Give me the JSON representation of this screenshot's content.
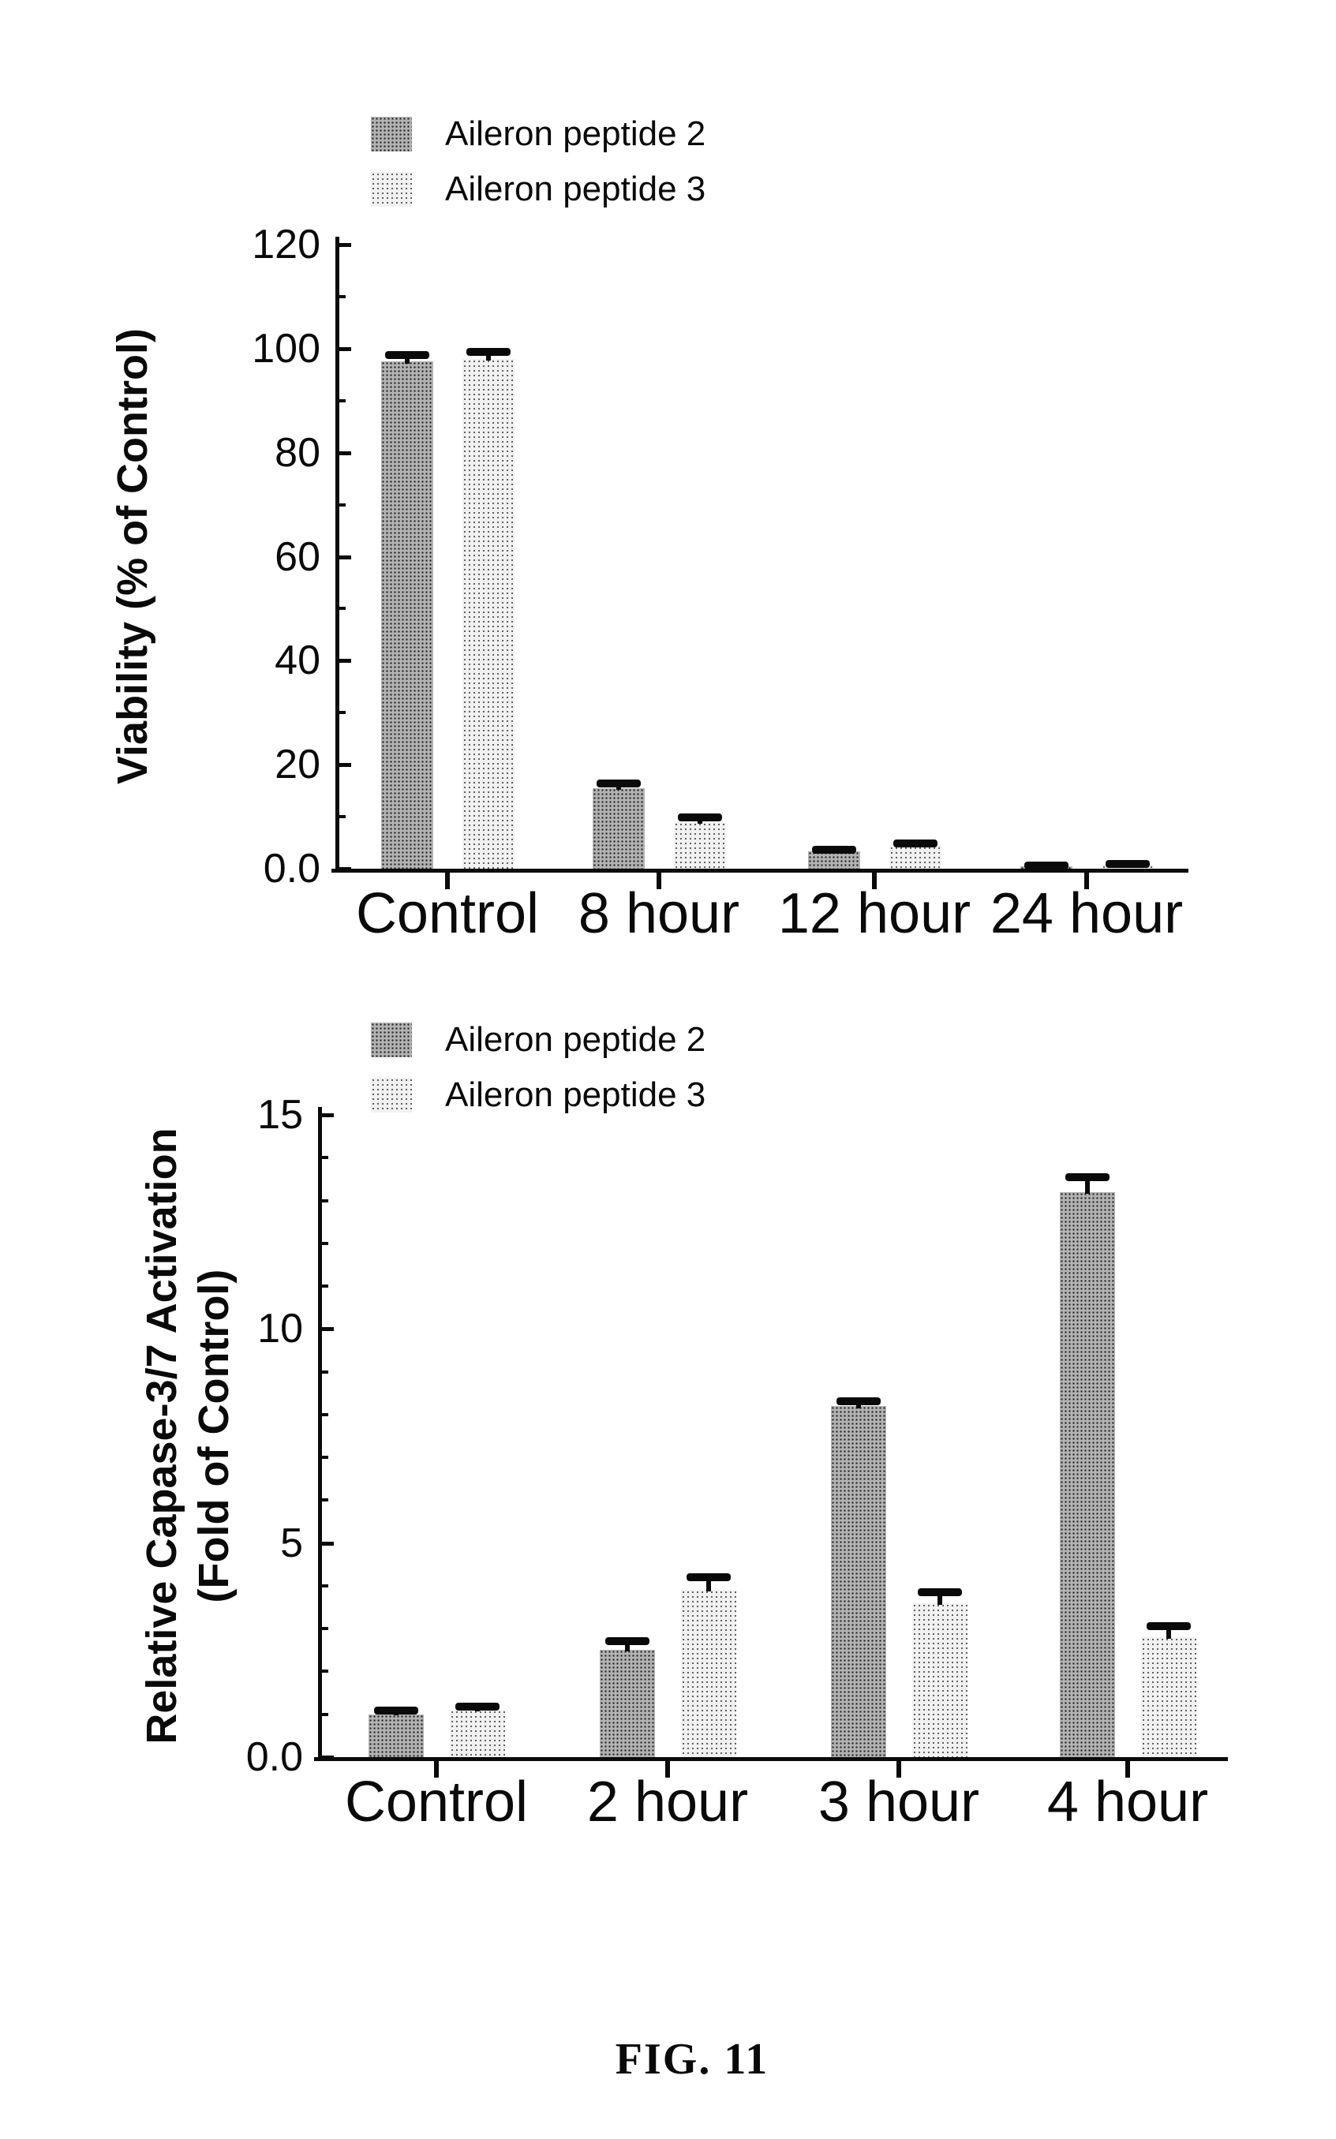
{
  "figure": {
    "caption": "FIG. 11"
  },
  "colors": {
    "bar_dark": "#6f6f6f",
    "bar_light": "#d2d2d2",
    "axis": "#0a0a0a",
    "background": "#ffffff"
  },
  "chart_data": [
    {
      "type": "bar",
      "title": "",
      "xlabel": "",
      "ylabel": "Viability (% of Control)",
      "ylabel_lines": [
        "Viability (% of Control)"
      ],
      "categories": [
        "Control",
        "8 hour",
        "12 hour",
        "24 hour"
      ],
      "series": [
        {
          "name": "Aileron peptide 2",
          "values": [
            97.5,
            15.5,
            3.3,
            0.4
          ],
          "errors": [
            1.3,
            0.9,
            0.4,
            0.15
          ]
        },
        {
          "name": "Aileron peptide 3",
          "values": [
            98.0,
            9.0,
            4.4,
            0.7
          ],
          "errors": [
            1.3,
            0.9,
            0.5,
            0.2
          ]
        }
      ],
      "ylim": [
        0,
        120
      ],
      "yticks": [
        {
          "value": 0,
          "label": "0.0"
        },
        {
          "value": 20,
          "label": "20"
        },
        {
          "value": 40,
          "label": "40"
        },
        {
          "value": 60,
          "label": "60"
        },
        {
          "value": 80,
          "label": "80"
        },
        {
          "value": 100,
          "label": "100"
        },
        {
          "value": 120,
          "label": "120"
        }
      ],
      "minor_ticks": [
        10,
        30,
        50,
        70,
        90,
        110
      ],
      "grid": "off",
      "legend_position": "above-left"
    },
    {
      "type": "bar",
      "title": "",
      "xlabel": "",
      "ylabel": "Relative Capase-3/7 Activation (Fold of Control)",
      "ylabel_lines": [
        "Relative Capase-3/7 Activation",
        "(Fold of Control)"
      ],
      "categories": [
        "Control",
        "2 hour",
        "3 hour",
        "4 hour"
      ],
      "series": [
        {
          "name": "Aileron peptide 2",
          "values": [
            1.0,
            2.5,
            8.2,
            13.2
          ],
          "errors": [
            0.08,
            0.2,
            0.12,
            0.35
          ]
        },
        {
          "name": "Aileron peptide 3",
          "values": [
            1.1,
            3.9,
            3.6,
            2.8
          ],
          "errors": [
            0.08,
            0.3,
            0.25,
            0.25
          ]
        }
      ],
      "ylim": [
        0,
        15
      ],
      "yticks": [
        {
          "value": 0,
          "label": "0.0"
        },
        {
          "value": 5,
          "label": "5"
        },
        {
          "value": 10,
          "label": "10"
        },
        {
          "value": 15,
          "label": "15"
        }
      ],
      "minor_ticks": [
        1,
        2,
        3,
        4,
        6,
        7,
        8,
        9,
        11,
        12,
        13,
        14
      ],
      "grid": "off",
      "legend_position": "above-left"
    }
  ]
}
